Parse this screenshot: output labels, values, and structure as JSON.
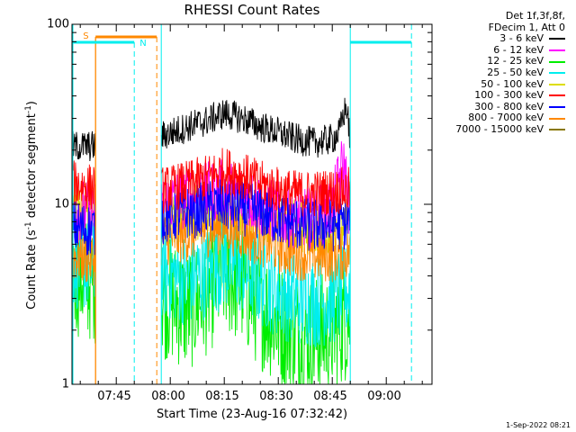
{
  "chart_data": {
    "type": "line",
    "title": "RHESSI Count Rates",
    "xlabel": "Start Time (23-Aug-16 07:32:42)",
    "ylabel": "Count Rate (s",
    "ylabel_sup": "-1",
    "ylabel_tail": " detector segment",
    "ylabel_sup2": "-1",
    "ylabel_close": ")",
    "y_scale": "log",
    "ylim": [
      1,
      100
    ],
    "xlim": [
      "07:32:42",
      "09:12:42"
    ],
    "x_ticks": [
      "07:45",
      "08:00",
      "08:15",
      "08:30",
      "08:45",
      "09:00"
    ],
    "y_ticks": [
      "100",
      "10",
      "1"
    ],
    "grid": false,
    "legend_placement": "outside-right",
    "legend_header": [
      "Det 1f,3f,8f,",
      "FDecim 1, Att 0"
    ],
    "data_gaps": [
      [
        "07:39:15",
        "07:57:30"
      ],
      [
        "08:50:00",
        "09:07:00"
      ]
    ],
    "series": [
      {
        "name": "3 - 6 keV",
        "color": "#000000",
        "x": [
          "07:33",
          "07:38",
          "07:58",
          "08:05",
          "08:10",
          "08:15",
          "08:20",
          "08:25",
          "08:30",
          "08:35",
          "08:40",
          "08:45",
          "08:47",
          "08:48",
          "08:49",
          "08:50",
          "08:55",
          "09:00",
          "09:05",
          "09:07"
        ],
        "values": [
          21,
          21,
          24,
          27,
          29,
          32,
          30,
          27,
          25,
          23,
          22,
          23,
          25,
          31,
          35,
          22,
          21,
          21,
          22,
          21
        ]
      },
      {
        "name": "6 - 12 keV",
        "color": "#ff00ff",
        "x": [
          "07:33",
          "07:38",
          "07:58",
          "08:05",
          "08:10",
          "08:15",
          "08:20",
          "08:25",
          "08:30",
          "08:35",
          "08:40",
          "08:45",
          "08:47",
          "08:48",
          "08:49",
          "08:50",
          "08:55",
          "09:00",
          "09:05",
          "09:07"
        ],
        "values": [
          9.5,
          9,
          10,
          11,
          11.5,
          12,
          11,
          10,
          9,
          8.5,
          8.5,
          9.5,
          14,
          17,
          13,
          9,
          9,
          9.5,
          10,
          9.5
        ]
      },
      {
        "name": "12 - 25 keV",
        "color": "#00ee00",
        "x": [
          "07:33",
          "07:38",
          "07:58",
          "08:05",
          "08:10",
          "08:15",
          "08:20",
          "08:25",
          "08:30",
          "08:35",
          "08:40",
          "08:45",
          "08:50",
          "08:55",
          "09:00",
          "09:05",
          "09:07"
        ],
        "values": [
          4.2,
          3.8,
          3.1,
          2.6,
          3.2,
          4.2,
          3.6,
          2.7,
          2.2,
          1.9,
          1.8,
          2.0,
          2.4,
          2.6,
          3.1,
          4.0,
          4.3
        ]
      },
      {
        "name": "25 - 50 keV",
        "color": "#00eeee",
        "x": [
          "07:33",
          "07:38",
          "07:58",
          "08:05",
          "08:10",
          "08:15",
          "08:20",
          "08:25",
          "08:30",
          "08:35",
          "08:40",
          "08:45",
          "08:50",
          "08:55",
          "09:00",
          "09:05",
          "09:07"
        ],
        "values": [
          4.8,
          4.5,
          4.2,
          3.8,
          4.2,
          4.8,
          4.4,
          3.8,
          3.3,
          3.0,
          2.9,
          3.0,
          3.4,
          3.6,
          4.0,
          4.6,
          4.8
        ]
      },
      {
        "name": "50 - 100 keV",
        "color": "#dddd00",
        "x": [
          "07:33",
          "07:38",
          "07:58",
          "08:05",
          "08:10",
          "08:15",
          "08:20",
          "08:25",
          "08:30",
          "08:35",
          "08:40",
          "08:45",
          "08:50",
          "08:55",
          "09:00",
          "09:05",
          "09:07"
        ],
        "values": [
          10,
          9.5,
          8.5,
          8.8,
          9.2,
          9.8,
          9.3,
          8.7,
          8.0,
          7.5,
          7.3,
          7.4,
          7.8,
          8.2,
          8.8,
          9.5,
          10
        ]
      },
      {
        "name": "100 - 300 keV",
        "color": "#ff0000",
        "x": [
          "07:33",
          "07:38",
          "07:58",
          "08:05",
          "08:10",
          "08:15",
          "08:20",
          "08:25",
          "08:30",
          "08:35",
          "08:40",
          "08:45",
          "08:50",
          "08:55",
          "09:00",
          "09:05",
          "09:07"
        ],
        "values": [
          13,
          12.5,
          12,
          13,
          14,
          15.5,
          14.5,
          13,
          12,
          11.5,
          11.5,
          11.8,
          12,
          12.5,
          13,
          14,
          14.5
        ]
      },
      {
        "name": "300 - 800 keV",
        "color": "#0000ff",
        "x": [
          "07:33",
          "07:38",
          "07:58",
          "08:05",
          "08:10",
          "08:15",
          "08:20",
          "08:25",
          "08:30",
          "08:35",
          "08:40",
          "08:45",
          "08:50",
          "08:55",
          "09:00",
          "09:05",
          "09:07"
        ],
        "values": [
          7.5,
          7.2,
          8.5,
          9.0,
          9.5,
          10,
          9.5,
          9.0,
          8.3,
          7.8,
          7.6,
          7.7,
          8.0,
          8.2,
          8.5,
          8.3,
          8.0
        ]
      },
      {
        "name": "800 - 7000 keV",
        "color": "#ff8800",
        "x": [
          "07:33",
          "07:38",
          "07:58",
          "08:05",
          "08:10",
          "08:15",
          "08:20",
          "08:25",
          "08:30",
          "08:35",
          "08:40",
          "08:45",
          "08:50",
          "08:55",
          "09:00",
          "09:05",
          "09:07"
        ],
        "values": [
          5.2,
          5.0,
          6.4,
          6.8,
          7.2,
          7.6,
          7.0,
          6.4,
          5.8,
          5.4,
          5.2,
          5.2,
          5.4,
          5.6,
          6.0,
          6.5,
          6.8
        ]
      },
      {
        "name": "7000 - 15000 keV",
        "color": "#887700",
        "x": [],
        "values": []
      }
    ],
    "attenuator_markers": [
      {
        "label": "S",
        "color": "#ff8800",
        "time": "07:39:15",
        "style": "solid"
      },
      {
        "label": "N",
        "color": "#00eeee",
        "time": "07:50:00",
        "style": "dashed"
      }
    ]
  },
  "footer": {
    "date": "1-Sep-2022 08:21"
  }
}
